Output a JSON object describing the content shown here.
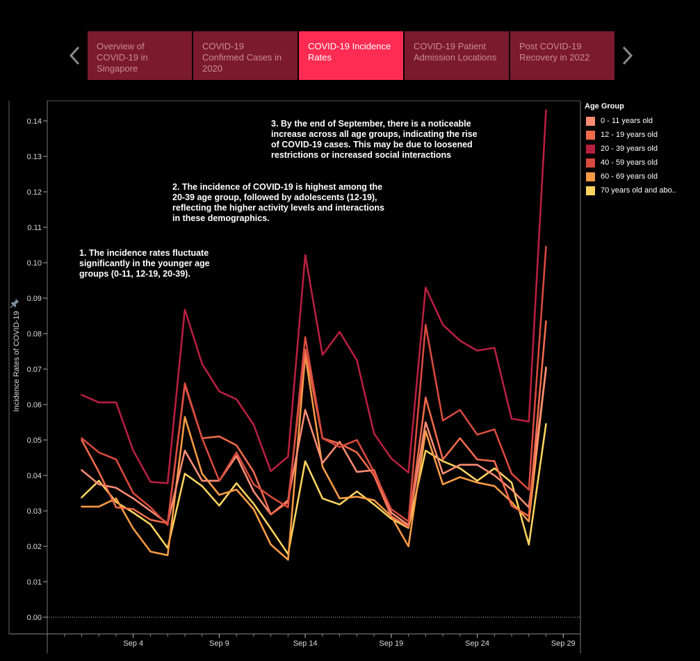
{
  "nav": {
    "prev_icon": "chevron-left-icon",
    "next_icon": "chevron-right-icon",
    "tabs": [
      {
        "label": "Overview of COVID-19 in Singapore",
        "lines": [
          "Overview of",
          "COVID-19 in",
          "Singapore"
        ],
        "active": false
      },
      {
        "label": "COVID-19 Confirmed Cases in 2020",
        "lines": [
          "COVID-19",
          "Confirmed Cases in",
          "2020"
        ],
        "active": false
      },
      {
        "label": "COVID-19 Incidence Rates",
        "lines": [
          "COVID-19 Incidence",
          "Rates"
        ],
        "active": true
      },
      {
        "label": "COVID-19 Patient Admission Locations",
        "lines": [
          "COVID-19 Patient",
          "Admission Locations"
        ],
        "active": false
      },
      {
        "label": "Post COVID-19 Recovery in 2022",
        "lines": [
          "Post COVID-19",
          "Recovery in 2022"
        ],
        "active": false
      }
    ],
    "colors": {
      "tab": "#7b1a2c",
      "tab_active": "#fe2b52"
    }
  },
  "chart_data": {
    "type": "line",
    "title": "",
    "xlabel": "",
    "ylabel": "Incidence Rates of COVID-19",
    "ylim": [
      0,
      0.146
    ],
    "xlim": [
      "2020-08-30",
      "2020-09-30"
    ],
    "yticks": [
      "0.00",
      "0.01",
      "0.02",
      "0.03",
      "0.04",
      "0.05",
      "0.06",
      "0.07",
      "0.08",
      "0.09",
      "0.10",
      "0.11",
      "0.12",
      "0.13",
      "0.14"
    ],
    "xticks": [
      {
        "date": "2020-09-04",
        "label": "Sep 4"
      },
      {
        "date": "2020-09-09",
        "label": "Sep 9"
      },
      {
        "date": "2020-09-14",
        "label": "Sep 14"
      },
      {
        "date": "2020-09-19",
        "label": "Sep 19"
      },
      {
        "date": "2020-09-24",
        "label": "Sep 24"
      },
      {
        "date": "2020-09-29",
        "label": "Sep 29"
      }
    ],
    "x": [
      "2020-09-01",
      "2020-09-02",
      "2020-09-03",
      "2020-09-04",
      "2020-09-05",
      "2020-09-06",
      "2020-09-07",
      "2020-09-08",
      "2020-09-09",
      "2020-09-10",
      "2020-09-11",
      "2020-09-12",
      "2020-09-13",
      "2020-09-14",
      "2020-09-15",
      "2020-09-16",
      "2020-09-17",
      "2020-09-18",
      "2020-09-19",
      "2020-09-20",
      "2020-09-21",
      "2020-09-22",
      "2020-09-23",
      "2020-09-24",
      "2020-09-25",
      "2020-09-26",
      "2020-09-27",
      "2020-09-28"
    ],
    "legend": {
      "title": "Age Group",
      "position": "right"
    },
    "series": [
      {
        "name": "0 - 11 years old",
        "color": "#fc8d73",
        "values": [
          0.0415,
          0.0375,
          0.0365,
          0.0335,
          0.03,
          0.0265,
          0.047,
          0.0385,
          0.0385,
          0.0455,
          0.0355,
          0.029,
          0.033,
          0.0585,
          0.0435,
          0.0495,
          0.041,
          0.0415,
          0.0295,
          0.026,
          0.055,
          0.0405,
          0.043,
          0.043,
          0.04,
          0.036,
          0.031,
          0.07
        ]
      },
      {
        "name": "12 - 19 years old",
        "color": "#f06a4c",
        "values": [
          0.05,
          0.041,
          0.031,
          0.0305,
          0.0275,
          0.0265,
          0.0655,
          0.0505,
          0.051,
          0.0485,
          0.041,
          0.029,
          0.0325,
          0.0755,
          0.0505,
          0.049,
          0.0465,
          0.04,
          0.0285,
          0.0255,
          0.062,
          0.0445,
          0.0505,
          0.0445,
          0.044,
          0.0315,
          0.0285,
          0.0835
        ]
      },
      {
        "name": "20 - 39 years old",
        "color": "#b81f3f",
        "values": [
          0.0627,
          0.0606,
          0.0606,
          0.047,
          0.0382,
          0.0378,
          0.0868,
          0.0715,
          0.0637,
          0.0615,
          0.0543,
          0.0412,
          0.0453,
          0.1022,
          0.074,
          0.0805,
          0.0725,
          0.0518,
          0.0448,
          0.0408,
          0.093,
          0.0825,
          0.078,
          0.0752,
          0.076,
          0.056,
          0.0552,
          0.143
        ]
      },
      {
        "name": "40 - 59 years old",
        "color": "#d84a3e",
        "values": [
          0.0505,
          0.0465,
          0.0445,
          0.035,
          0.031,
          0.026,
          0.066,
          0.0505,
          0.0385,
          0.0465,
          0.0375,
          0.034,
          0.031,
          0.079,
          0.0505,
          0.048,
          0.05,
          0.041,
          0.0305,
          0.027,
          0.0825,
          0.0555,
          0.0585,
          0.0515,
          0.053,
          0.0405,
          0.036,
          0.1045
        ]
      },
      {
        "name": "60 - 69 years old",
        "color": "#f99b45",
        "values": [
          0.0312,
          0.0312,
          0.0335,
          0.025,
          0.0185,
          0.0175,
          0.0565,
          0.0405,
          0.0345,
          0.036,
          0.0305,
          0.0205,
          0.0162,
          0.074,
          0.0425,
          0.0335,
          0.034,
          0.033,
          0.0285,
          0.02,
          0.0525,
          0.0375,
          0.0395,
          0.038,
          0.037,
          0.0325,
          0.027,
          0.0705
        ]
      },
      {
        "name": "70 years old and abo..",
        "color": "#fbd35e",
        "values": [
          0.0338,
          0.0385,
          0.0325,
          0.0295,
          0.0262,
          0.0195,
          0.0405,
          0.037,
          0.0315,
          0.0378,
          0.032,
          0.025,
          0.0178,
          0.044,
          0.0335,
          0.0318,
          0.0355,
          0.0318,
          0.0278,
          0.0252,
          0.047,
          0.044,
          0.042,
          0.0385,
          0.042,
          0.038,
          0.0205,
          0.0545
        ]
      }
    ],
    "annotations": [
      {
        "lines": [
          "1. The incidence rates fluctuate",
          "significantly in the younger age",
          "groups (0-11, 12-19, 20-39)."
        ]
      },
      {
        "lines": [
          "2. The incidence of COVID-19 is highest among the",
          "20-39 age group, followed by adolescents (12-19),",
          "reflecting the higher activity levels and interactions",
          "in these demographics."
        ]
      },
      {
        "lines": [
          "3. By the end of September, there is a noticeable",
          "increase across all age groups, indicating the rise",
          "of COVID-19 cases. This may be due to loosened",
          "restrictions or increased social interactions"
        ]
      }
    ]
  }
}
